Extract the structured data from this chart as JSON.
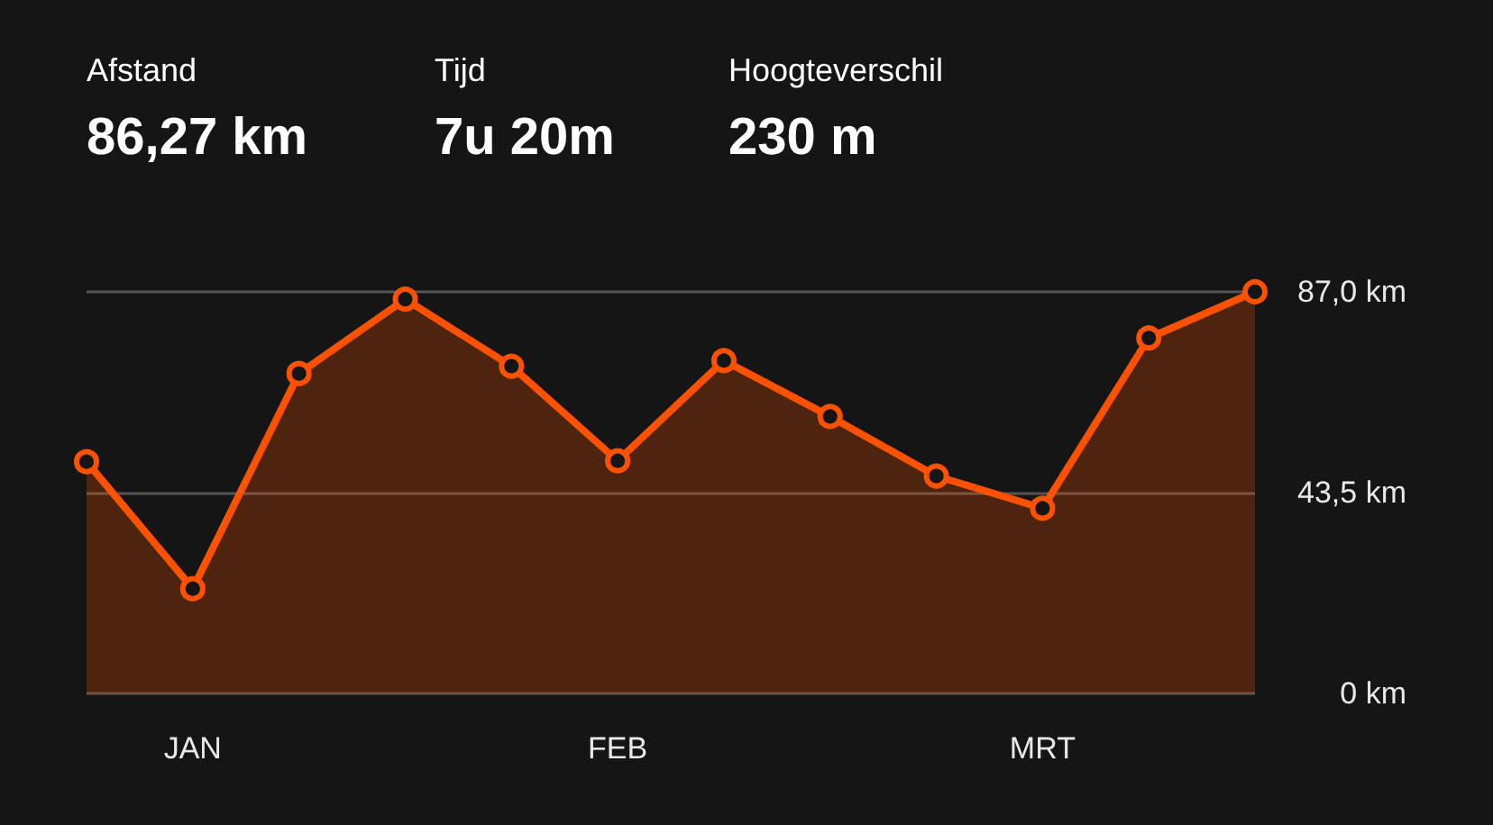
{
  "chart_data": {
    "type": "area",
    "annotations": [
      "Afstand",
      "86,27 km",
      "Tijd",
      "7u 20m",
      "Hoogteverschil",
      "230 m"
    ],
    "categories": [
      null,
      "JAN",
      null,
      null,
      null,
      "FEB",
      null,
      null,
      null,
      "MRT",
      null,
      null
    ],
    "series": [
      {
        "color": "#fc5200",
        "values": [
          50.2,
          22.7,
          69.3,
          85.4,
          70.9,
          50.4,
          72.1,
          60.0,
          47.1,
          40.1,
          77.0,
          87.0
        ]
      }
    ],
    "ylim": [
      0,
      87
    ],
    "yticks": [
      {
        "value": 0,
        "label": "0 km"
      },
      {
        "value": 43.5,
        "label": "43,5 km"
      },
      {
        "value": 87,
        "label": "87,0 km"
      }
    ],
    "grid": "y",
    "marker": "circle",
    "line_style": "solid"
  }
}
